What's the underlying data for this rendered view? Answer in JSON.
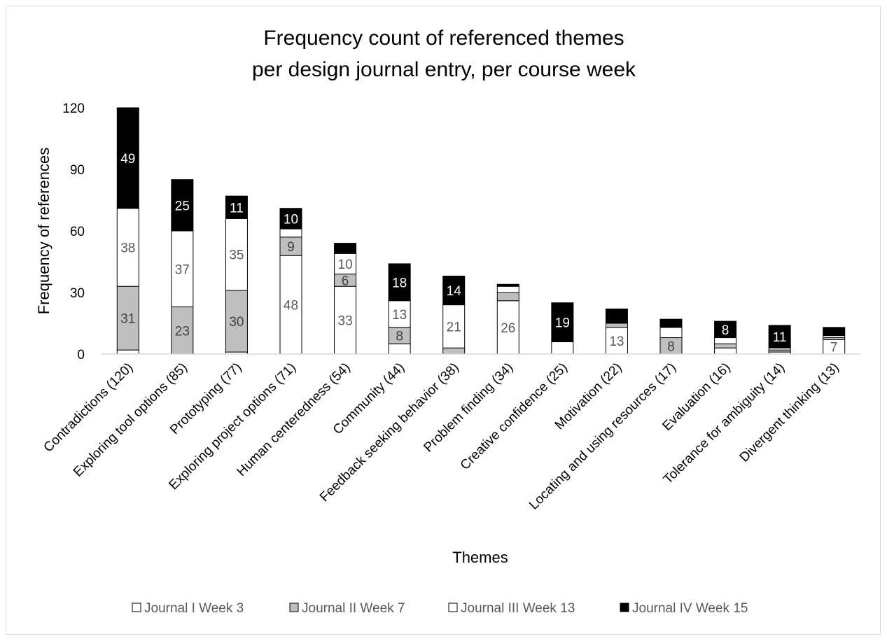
{
  "chart_data": {
    "type": "bar",
    "stacked": true,
    "title_lines": [
      "Frequency count of referenced themes",
      "per design journal entry, per course week"
    ],
    "xlabel": "Themes",
    "ylabel": "Frequency of references",
    "ylim": [
      0,
      120
    ],
    "yticks": [
      0,
      30,
      60,
      90,
      120
    ],
    "grid": false,
    "legend_position": "bottom",
    "categories": [
      "Contradictions (120)",
      "Exploring tool options (85)",
      "Prototyping (77)",
      "Exploring project options (71)",
      "Human centeredness (54)",
      "Community (44)",
      "Feedback seeking behavior (38)",
      "Problem finding (34)",
      "Creative confidence (25)",
      "Motivation (22)",
      "Locating and using resources (17)",
      "Evaluation (16)",
      "Tolerance for ambiguity (14)",
      "Divergent thinking (13)"
    ],
    "series": [
      {
        "name": "Journal I  Week 3",
        "color": "#ffffff",
        "label_color": "#595959",
        "values": [
          2,
          0,
          1,
          48,
          33,
          5,
          0,
          26,
          0,
          13,
          0,
          3,
          1,
          7
        ],
        "labels": [
          "",
          "",
          "",
          "48",
          "33",
          "",
          "",
          "26",
          "",
          "13",
          "",
          "",
          "",
          "7"
        ]
      },
      {
        "name": "Journal II Week 7",
        "color": "#bfbfbf",
        "label_color": "#404040",
        "values": [
          31,
          23,
          30,
          9,
          6,
          8,
          3,
          4,
          0,
          2,
          8,
          2,
          1,
          1
        ],
        "labels": [
          "31",
          "23",
          "30",
          "9",
          "6",
          "8",
          "",
          "",
          "",
          "",
          "8",
          "",
          "",
          ""
        ]
      },
      {
        "name": "Journal III Week 13",
        "color": "#ffffff",
        "label_color": "#595959",
        "values": [
          38,
          37,
          35,
          4,
          10,
          13,
          21,
          3,
          6,
          0,
          5,
          3,
          1,
          1
        ],
        "labels": [
          "38",
          "37",
          "35",
          "",
          "10",
          "13",
          "21",
          "",
          "",
          "",
          "",
          "",
          "",
          ""
        ]
      },
      {
        "name": "Journal IV Week 15",
        "color": "#000000",
        "label_color": "#ffffff",
        "values": [
          49,
          25,
          11,
          10,
          5,
          18,
          14,
          1,
          19,
          7,
          4,
          8,
          11,
          4
        ],
        "labels": [
          "49",
          "25",
          "11",
          "10",
          "",
          "18",
          "14",
          "",
          "19",
          "",
          "",
          "8",
          "11",
          ""
        ]
      }
    ]
  }
}
